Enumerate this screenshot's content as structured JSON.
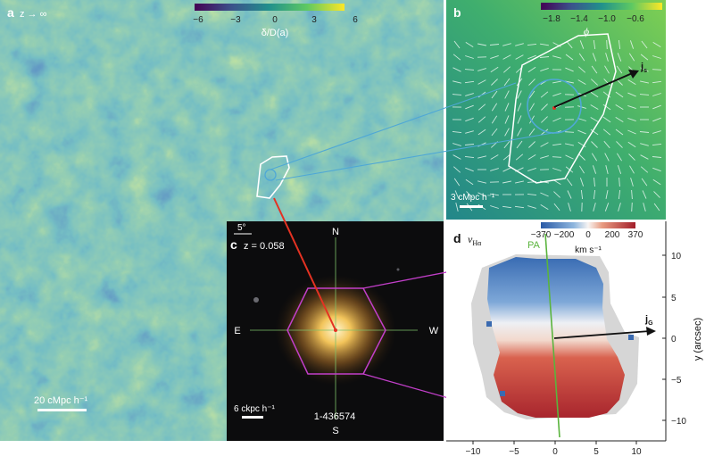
{
  "panel_a": {
    "letter": "a",
    "redshift_label": "z → ∞",
    "colorbar_ticks": [
      "−6",
      "−3",
      "0",
      "3",
      "6"
    ],
    "colorbar_label": "δ/D(a)",
    "scalebar_label": "20 cMpc h⁻¹"
  },
  "panel_b": {
    "letter": "b",
    "colorbar_ticks": [
      "−1.8",
      "−1.4",
      "−1.0",
      "−0.6"
    ],
    "colorbar_label": "ϕ",
    "vector_label": "j",
    "vector_sub": "s",
    "scalebar_label": "3 cMpc h⁻¹"
  },
  "panel_c": {
    "letter": "c",
    "redshift_label": "z = 0.058",
    "angle_label": "5°",
    "north": "N",
    "south": "S",
    "east": "E",
    "west": "W",
    "scalebar_label": "6 ckpc h⁻¹",
    "galaxy_id": "1-436574"
  },
  "panel_d": {
    "letter": "d",
    "quantity_label": "v",
    "quantity_sub": "Hα",
    "colorbar_ticks": [
      "−370",
      "−200",
      "0",
      "200",
      "370"
    ],
    "colorbar_units": "km s⁻¹",
    "pa_label": "PA",
    "vector_label": "j",
    "vector_sub": "G",
    "y_axis_label": "y (arcsec)",
    "x_ticks": [
      "−10",
      "−5",
      "0",
      "5",
      "10"
    ],
    "y_ticks": [
      "10",
      "5",
      "0",
      "−5",
      "−10"
    ]
  },
  "colors": {
    "density_low": "#3b2d7a",
    "density_mid": "#2b9a87",
    "density_high": "#e8e44a",
    "potential_bg": "#3aa37d",
    "contour": "#ffffff",
    "link_blue": "#4fa8d6",
    "link_magenta": "#c23fc9",
    "red_arrow": "#e43222",
    "pa_green": "#5ab43d",
    "vel_blue": "#3a6ab0",
    "vel_red": "#b0282e",
    "mask_gray": "#d6d6d6"
  }
}
